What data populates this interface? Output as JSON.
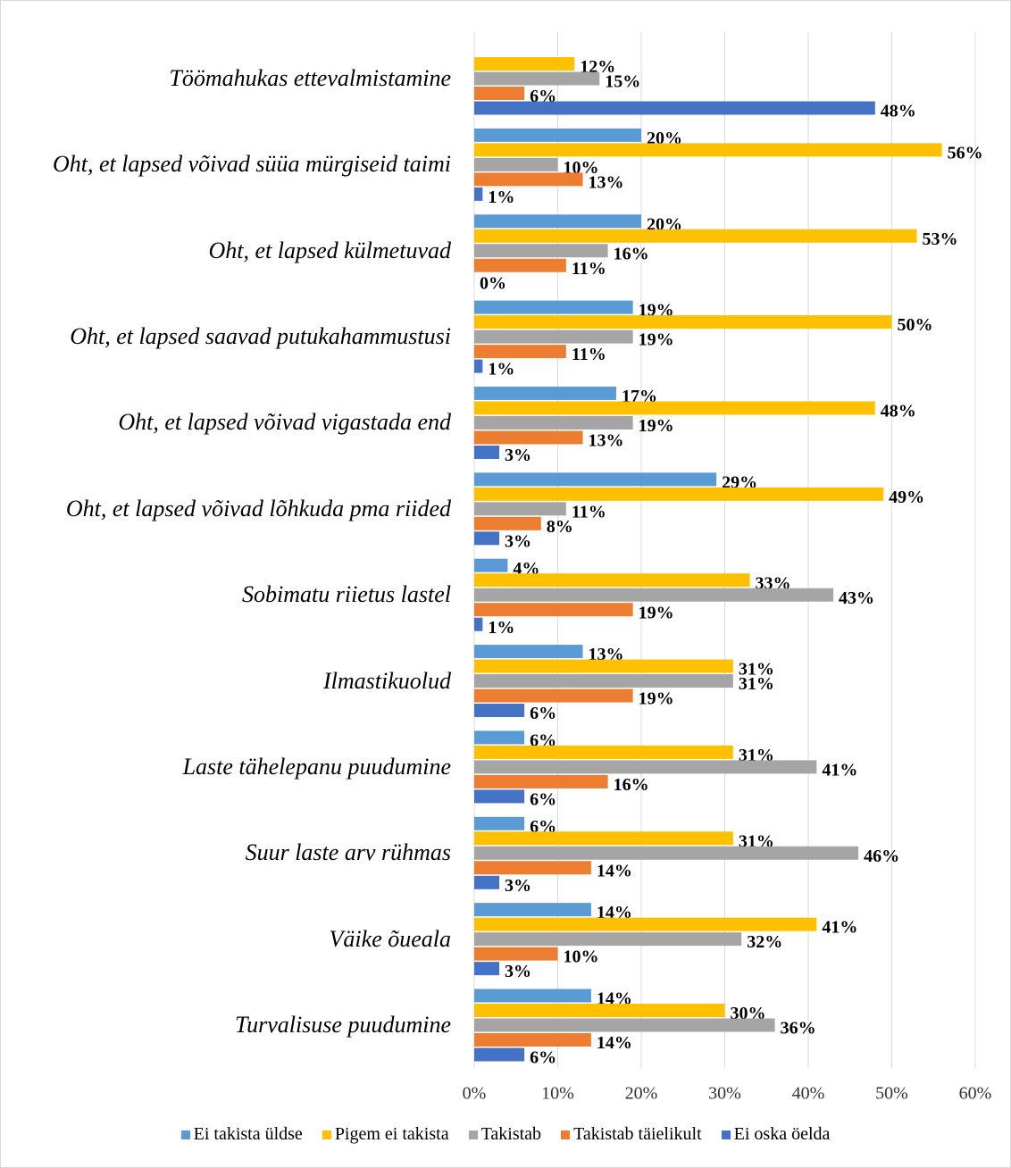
{
  "chart_data": {
    "type": "bar",
    "orientation": "horizontal",
    "categories": [
      "Töömahukas ettevalmistamine",
      "Oht, et lapsed võivad süüa mürgiseid taimi",
      "Oht, et lapsed külmetuvad",
      "Oht, et lapsed saavad putukahammustusi",
      "Oht, et lapsed võivad vigastada end",
      "Oht, et lapsed võivad lõhkuda pma riided",
      "Sobimatu riietus lastel",
      "Ilmastikuolud",
      "Laste tähelepanu puudumine",
      "Suur laste arv rühmas",
      "Väike õueala",
      "Turvalisuse puudumine"
    ],
    "series": [
      {
        "name": "Ei takista üldse",
        "color": "#5b9bd5",
        "values": [
          null,
          20,
          20,
          19,
          17,
          29,
          4,
          13,
          6,
          6,
          14,
          14
        ],
        "value_labels": [
          null,
          "20%",
          "20%",
          "19%",
          "17%",
          "29%",
          "4%",
          "13%",
          "6%",
          "6%",
          "14%",
          "14%"
        ]
      },
      {
        "name": "Pigem ei takista",
        "color": "#ffc000",
        "values": [
          12,
          56,
          53,
          50,
          48,
          49,
          33,
          31,
          31,
          31,
          41,
          30
        ],
        "value_labels": [
          "12%",
          "56%",
          "53%",
          "50%",
          "48%",
          "49%",
          "33%",
          "31%",
          "31%",
          "31%",
          "41%",
          "30%"
        ]
      },
      {
        "name": "Takistab",
        "color": "#a5a5a5",
        "values": [
          15,
          10,
          16,
          19,
          19,
          11,
          43,
          31,
          41,
          46,
          32,
          36
        ],
        "value_labels": [
          "15%",
          "10%",
          "16%",
          "19%",
          "19%",
          "11%",
          "43%",
          "31%",
          "41%",
          "46%",
          "32%",
          "36%"
        ]
      },
      {
        "name": "Takistab täielikult",
        "color": "#ed7d31",
        "values": [
          6,
          13,
          11,
          11,
          13,
          8,
          19,
          19,
          16,
          14,
          10,
          14
        ],
        "value_labels": [
          "6%",
          "13%",
          "11%",
          "11%",
          "13%",
          "8%",
          "19%",
          "19%",
          "16%",
          "14%",
          "10%",
          "14%"
        ]
      },
      {
        "name": "Ei oska öelda",
        "color": "#4472c4",
        "values": [
          48,
          1,
          0,
          1,
          3,
          3,
          1,
          6,
          6,
          3,
          3,
          6
        ],
        "value_labels": [
          "48%",
          "1%",
          "0%",
          "1%",
          "3%",
          "3%",
          "1%",
          "6%",
          "6%",
          "3%",
          "3%",
          "6%"
        ]
      }
    ],
    "xlim": [
      0,
      60
    ],
    "xticks": [
      {
        "value": 0,
        "label": "0%"
      },
      {
        "value": 10,
        "label": "10%"
      },
      {
        "value": 20,
        "label": "20%"
      },
      {
        "value": 30,
        "label": "30%"
      },
      {
        "value": 40,
        "label": "40%"
      },
      {
        "value": 50,
        "label": "50%"
      },
      {
        "value": 60,
        "label": "60%"
      }
    ],
    "grid": true,
    "legend": "bottom"
  }
}
